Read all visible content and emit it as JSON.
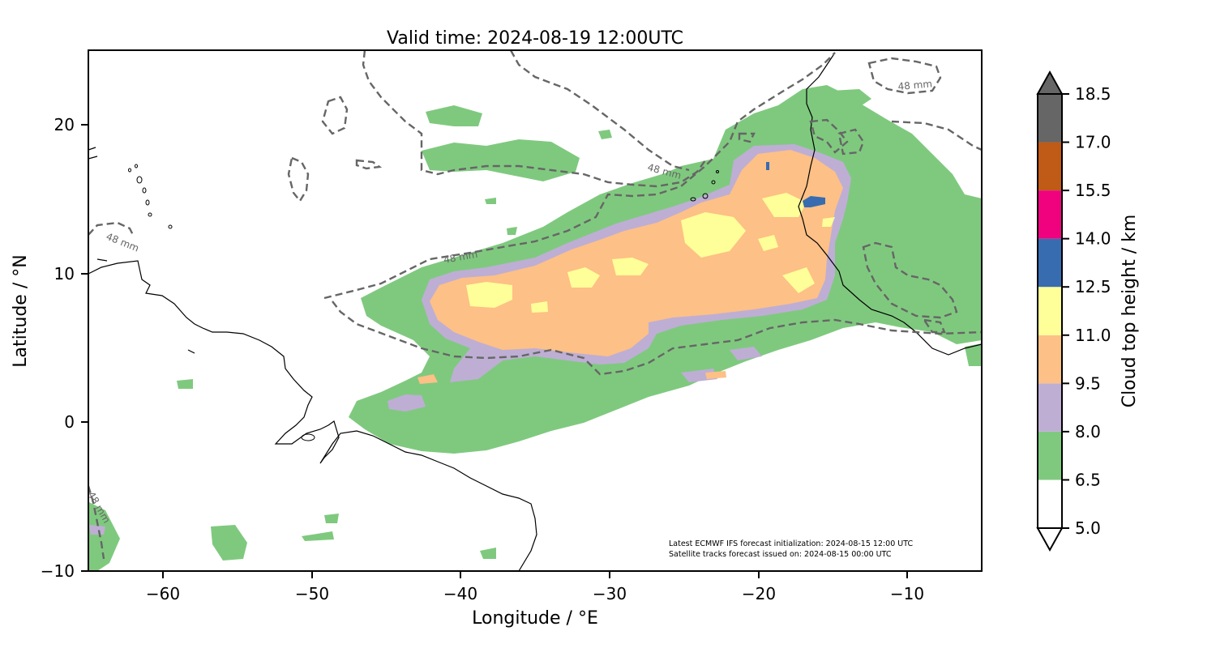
{
  "figure": {
    "title": "Valid time: 2024-08-19 12:00UTC",
    "xlabel": "Longitude / °E",
    "ylabel": "Latitude / °N",
    "x_ticks": [
      "−60",
      "−50",
      "−40",
      "−30",
      "−20",
      "−10"
    ],
    "y_ticks": [
      "20",
      "10",
      "0",
      "−10"
    ],
    "footnote_line1": "Latest ECMWF IFS forecast initialization: 2024-08-15 12:00 UTC",
    "footnote_line2": "Satellite tracks forecast issued on: 2024-08-15 00:00 UTC"
  },
  "contour": {
    "label": "48 mm",
    "color": "#666666"
  },
  "colorbar": {
    "label": "Cloud top height / km",
    "ticks": [
      "18.5",
      "17.0",
      "15.5",
      "14.0",
      "12.5",
      "11.0",
      "9.5",
      "8.0",
      "6.5",
      "5.0"
    ],
    "levels": [
      {
        "from": 5.0,
        "to": 6.5,
        "color": "#ffffff"
      },
      {
        "from": 6.5,
        "to": 8.0,
        "color": "#7fc97f"
      },
      {
        "from": 8.0,
        "to": 9.5,
        "color": "#beaed4"
      },
      {
        "from": 9.5,
        "to": 11.0,
        "color": "#fdc086"
      },
      {
        "from": 11.0,
        "to": 12.5,
        "color": "#ffff99"
      },
      {
        "from": 12.5,
        "to": 14.0,
        "color": "#386cb0"
      },
      {
        "from": 14.0,
        "to": 15.5,
        "color": "#f0027f"
      },
      {
        "from": 15.5,
        "to": 17.0,
        "color": "#bf5b17"
      },
      {
        "from": 17.0,
        "to": 18.5,
        "color": "#666666"
      }
    ]
  },
  "map_extent": {
    "lon_range": [
      -65,
      -5
    ],
    "lat_range": [
      -10,
      25
    ]
  }
}
